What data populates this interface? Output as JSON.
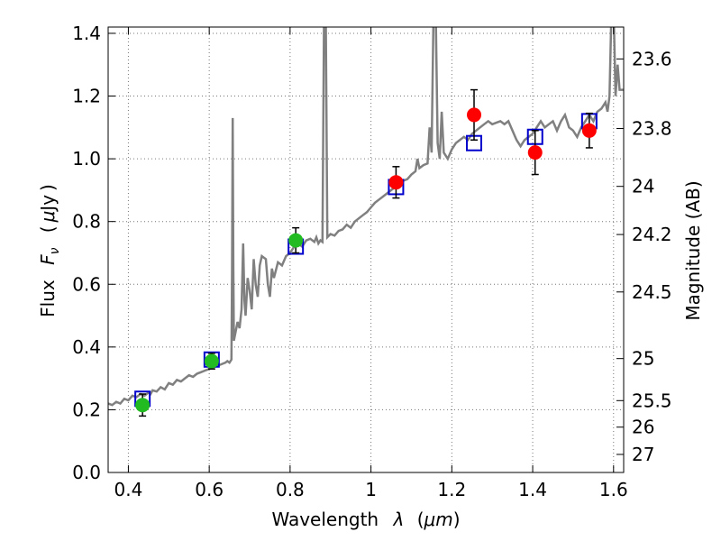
{
  "chart_data": {
    "type": "scatter",
    "xlabel_parts": {
      "word": "Wavelength",
      "symbol": "λ",
      "open": "(",
      "unit": "μm",
      "close": ")"
    },
    "ylabel_parts": {
      "word": "Flux",
      "symbol": "F",
      "subscript": "ν",
      "open": "(",
      "unit_prefix": "μ",
      "unit": "Jy",
      "close": ")"
    },
    "y2label": "Magnitude (AB)",
    "xlim": [
      0.35,
      1.625
    ],
    "ylim": [
      0.0,
      1.42
    ],
    "grid": true,
    "x_ticks": [
      {
        "value": 0.4,
        "label": "0.4"
      },
      {
        "value": 0.6,
        "label": "0.6"
      },
      {
        "value": 0.8,
        "label": "0.8"
      },
      {
        "value": 1.0,
        "label": "1"
      },
      {
        "value": 1.2,
        "label": "1.2"
      },
      {
        "value": 1.4,
        "label": "1.4"
      },
      {
        "value": 1.6,
        "label": "1.6"
      }
    ],
    "y_ticks": [
      {
        "value": 0.0,
        "label": "0.0"
      },
      {
        "value": 0.2,
        "label": "0.2"
      },
      {
        "value": 0.4,
        "label": "0.4"
      },
      {
        "value": 0.6,
        "label": "0.6"
      },
      {
        "value": 0.8,
        "label": "0.8"
      },
      {
        "value": 1.0,
        "label": "1.0"
      },
      {
        "value": 1.2,
        "label": "1.2"
      },
      {
        "value": 1.4,
        "label": "1.4"
      }
    ],
    "y2_ticks": [
      {
        "mag": 23.6,
        "label": "23.6"
      },
      {
        "mag": 23.8,
        "label": "23.8"
      },
      {
        "mag": 24.0,
        "label": "24"
      },
      {
        "mag": 24.2,
        "label": "24.2"
      },
      {
        "mag": 24.5,
        "label": "24.5"
      },
      {
        "mag": 25.0,
        "label": "25"
      },
      {
        "mag": 25.5,
        "label": "25.5"
      },
      {
        "mag": 26.0,
        "label": "26"
      },
      {
        "mag": 27.0,
        "label": "27"
      }
    ],
    "colors": {
      "model": "#808080",
      "model_box": "#0000cc",
      "optical": "#22bb22",
      "nir": "#ff0000",
      "errorbar": "#000000",
      "grid": "#777777"
    },
    "model_spectrum": [
      [
        0.35,
        0.22
      ],
      [
        0.36,
        0.215
      ],
      [
        0.37,
        0.225
      ],
      [
        0.38,
        0.22
      ],
      [
        0.39,
        0.235
      ],
      [
        0.4,
        0.23
      ],
      [
        0.41,
        0.245
      ],
      [
        0.42,
        0.24
      ],
      [
        0.43,
        0.25
      ],
      [
        0.44,
        0.245
      ],
      [
        0.45,
        0.255
      ],
      [
        0.455,
        0.25
      ],
      [
        0.46,
        0.262
      ],
      [
        0.47,
        0.258
      ],
      [
        0.48,
        0.272
      ],
      [
        0.49,
        0.265
      ],
      [
        0.5,
        0.285
      ],
      [
        0.51,
        0.28
      ],
      [
        0.52,
        0.295
      ],
      [
        0.53,
        0.29
      ],
      [
        0.54,
        0.3
      ],
      [
        0.55,
        0.31
      ],
      [
        0.56,
        0.305
      ],
      [
        0.57,
        0.315
      ],
      [
        0.58,
        0.32
      ],
      [
        0.59,
        0.325
      ],
      [
        0.6,
        0.33
      ],
      [
        0.61,
        0.335
      ],
      [
        0.62,
        0.34
      ],
      [
        0.63,
        0.345
      ],
      [
        0.64,
        0.35
      ],
      [
        0.645,
        0.355
      ],
      [
        0.65,
        0.35
      ],
      [
        0.655,
        0.36
      ],
      [
        0.6565,
        0.65
      ],
      [
        0.658,
        1.13
      ],
      [
        0.6595,
        0.65
      ],
      [
        0.661,
        0.42
      ],
      [
        0.67,
        0.48
      ],
      [
        0.675,
        0.46
      ],
      [
        0.68,
        0.52
      ],
      [
        0.684,
        0.73
      ],
      [
        0.687,
        0.55
      ],
      [
        0.69,
        0.5
      ],
      [
        0.695,
        0.62
      ],
      [
        0.7,
        0.58
      ],
      [
        0.705,
        0.52
      ],
      [
        0.71,
        0.68
      ],
      [
        0.715,
        0.6
      ],
      [
        0.72,
        0.56
      ],
      [
        0.725,
        0.66
      ],
      [
        0.73,
        0.69
      ],
      [
        0.74,
        0.68
      ],
      [
        0.745,
        0.6
      ],
      [
        0.75,
        0.56
      ],
      [
        0.755,
        0.65
      ],
      [
        0.76,
        0.62
      ],
      [
        0.77,
        0.67
      ],
      [
        0.78,
        0.66
      ],
      [
        0.79,
        0.69
      ],
      [
        0.8,
        0.7
      ],
      [
        0.81,
        0.72
      ],
      [
        0.82,
        0.73
      ],
      [
        0.83,
        0.72
      ],
      [
        0.84,
        0.74
      ],
      [
        0.85,
        0.745
      ],
      [
        0.86,
        0.735
      ],
      [
        0.865,
        0.75
      ],
      [
        0.87,
        0.73
      ],
      [
        0.875,
        0.74
      ],
      [
        0.88,
        0.735
      ],
      [
        0.884,
        1.48
      ],
      [
        0.888,
        1.48
      ],
      [
        0.892,
        0.75
      ],
      [
        0.9,
        0.76
      ],
      [
        0.91,
        0.755
      ],
      [
        0.92,
        0.77
      ],
      [
        0.93,
        0.775
      ],
      [
        0.94,
        0.79
      ],
      [
        0.95,
        0.78
      ],
      [
        0.96,
        0.8
      ],
      [
        0.97,
        0.81
      ],
      [
        0.98,
        0.82
      ],
      [
        0.99,
        0.83
      ],
      [
        1.0,
        0.845
      ],
      [
        1.01,
        0.86
      ],
      [
        1.02,
        0.87
      ],
      [
        1.03,
        0.88
      ],
      [
        1.04,
        0.89
      ],
      [
        1.05,
        0.9
      ],
      [
        1.06,
        0.91
      ],
      [
        1.07,
        0.92
      ],
      [
        1.08,
        0.93
      ],
      [
        1.09,
        0.935
      ],
      [
        1.1,
        0.95
      ],
      [
        1.11,
        0.96
      ],
      [
        1.115,
        1.0
      ],
      [
        1.12,
        0.97
      ],
      [
        1.13,
        0.98
      ],
      [
        1.14,
        0.985
      ],
      [
        1.145,
        1.1
      ],
      [
        1.15,
        1.02
      ],
      [
        1.155,
        1.48
      ],
      [
        1.16,
        1.48
      ],
      [
        1.165,
        1.05
      ],
      [
        1.17,
        1.0
      ],
      [
        1.175,
        1.15
      ],
      [
        1.18,
        1.02
      ],
      [
        1.19,
        1.0
      ],
      [
        1.2,
        1.03
      ],
      [
        1.21,
        1.05
      ],
      [
        1.22,
        1.06
      ],
      [
        1.23,
        1.07
      ],
      [
        1.24,
        1.06
      ],
      [
        1.25,
        1.08
      ],
      [
        1.26,
        1.09
      ],
      [
        1.27,
        1.1
      ],
      [
        1.28,
        1.11
      ],
      [
        1.29,
        1.12
      ],
      [
        1.3,
        1.11
      ],
      [
        1.31,
        1.115
      ],
      [
        1.32,
        1.12
      ],
      [
        1.33,
        1.11
      ],
      [
        1.34,
        1.12
      ],
      [
        1.35,
        1.09
      ],
      [
        1.36,
        1.06
      ],
      [
        1.37,
        1.04
      ],
      [
        1.38,
        1.06
      ],
      [
        1.39,
        1.07
      ],
      [
        1.4,
        1.08
      ],
      [
        1.41,
        1.1
      ],
      [
        1.42,
        1.12
      ],
      [
        1.43,
        1.1
      ],
      [
        1.44,
        1.11
      ],
      [
        1.45,
        1.12
      ],
      [
        1.46,
        1.09
      ],
      [
        1.47,
        1.12
      ],
      [
        1.48,
        1.14
      ],
      [
        1.49,
        1.1
      ],
      [
        1.5,
        1.09
      ],
      [
        1.51,
        1.07
      ],
      [
        1.52,
        1.1
      ],
      [
        1.53,
        1.12
      ],
      [
        1.54,
        1.14
      ],
      [
        1.55,
        1.12
      ],
      [
        1.56,
        1.15
      ],
      [
        1.57,
        1.16
      ],
      [
        1.58,
        1.18
      ],
      [
        1.585,
        1.15
      ],
      [
        1.59,
        1.2
      ],
      [
        1.595,
        1.48
      ],
      [
        1.6,
        1.48
      ],
      [
        1.605,
        1.2
      ],
      [
        1.61,
        1.3
      ],
      [
        1.615,
        1.22
      ],
      [
        1.625,
        1.22
      ]
    ],
    "model_photometry": [
      {
        "x": 0.435,
        "y": 0.235
      },
      {
        "x": 0.606,
        "y": 0.36
      },
      {
        "x": 0.814,
        "y": 0.72
      },
      {
        "x": 1.062,
        "y": 0.91
      },
      {
        "x": 1.255,
        "y": 1.05
      },
      {
        "x": 1.406,
        "y": 1.07
      },
      {
        "x": 1.54,
        "y": 1.12
      }
    ],
    "optical_points": [
      {
        "x": 0.435,
        "y": 0.215,
        "err": 0.035
      },
      {
        "x": 0.606,
        "y": 0.355,
        "err": 0.025
      },
      {
        "x": 0.814,
        "y": 0.74,
        "err": 0.04
      }
    ],
    "nir_points": [
      {
        "x": 1.062,
        "y": 0.925,
        "err": 0.05
      },
      {
        "x": 1.255,
        "y": 1.14,
        "err": 0.08
      },
      {
        "x": 1.406,
        "y": 1.02,
        "err": 0.07
      },
      {
        "x": 1.54,
        "y": 1.09,
        "err": 0.055
      }
    ]
  }
}
